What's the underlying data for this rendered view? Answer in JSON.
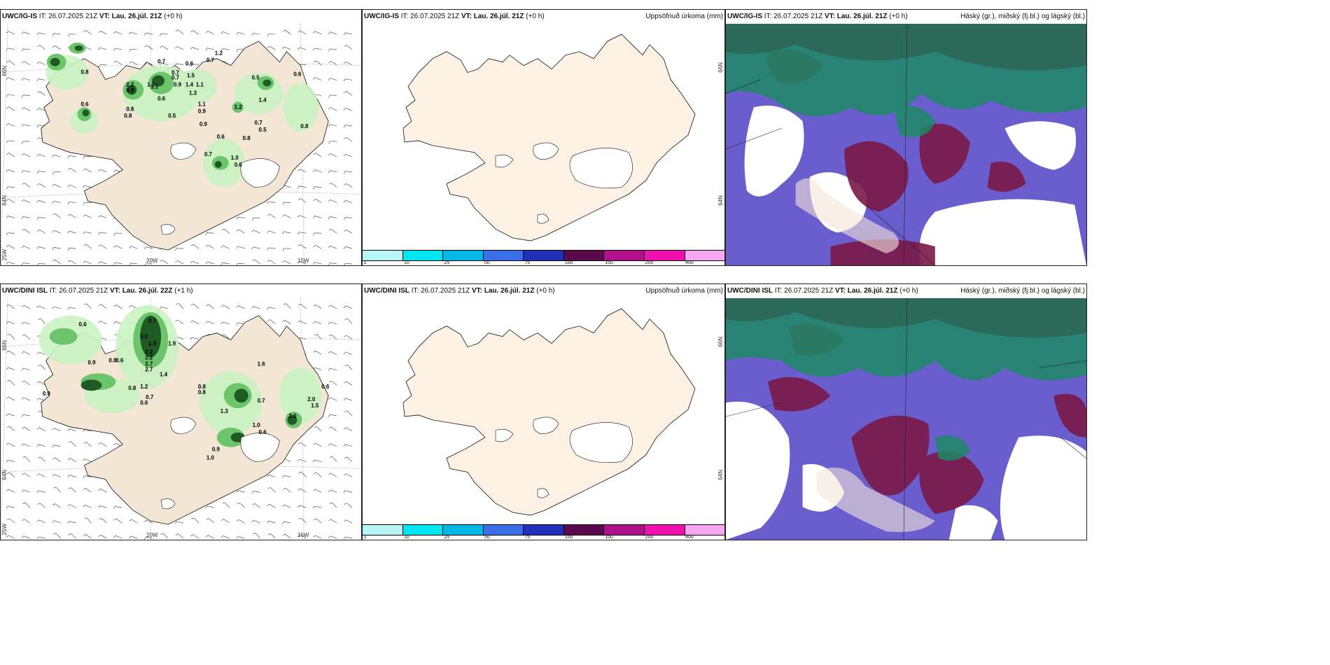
{
  "panels": [
    {
      "id": "p1",
      "model": "UWC/IG-IS",
      "it": "IT: 26.07.2025 21Z",
      "vt_label": "VT:",
      "vt": "Lau. 26.júl. 21Z",
      "lead": "(+0 h)",
      "right_title": ""
    },
    {
      "id": "p2",
      "model": "UWC/IG-IS",
      "it": "IT: 26.07.2025 21Z",
      "vt_label": "VT:",
      "vt": "Lau. 26.júl. 21Z",
      "lead": "(+0 h)",
      "right_title": "Uppsöfnuð úrkoma (mm)"
    },
    {
      "id": "p3",
      "model": "UWC/IG-IS",
      "it": "IT: 26.07.2025 21Z",
      "vt_label": "VT:",
      "vt": "Lau. 26.júl. 21Z",
      "lead": "(+0 h)",
      "right_title": "Háský (gr.), miðský (fj.bl.) og lágský (bl.)"
    },
    {
      "id": "p4",
      "model": "UWC/DINI ISL",
      "it": "IT: 26.07.2025 21Z",
      "vt_label": "VT:",
      "vt": "Lau. 26.júl. 22Z",
      "lead": "(+1 h)",
      "right_title": ""
    },
    {
      "id": "p5",
      "model": "UWC/DINI ISL",
      "it": "IT: 26.07.2025 21Z",
      "vt_label": "VT:",
      "vt": "Lau. 26.júl. 21Z",
      "lead": "(+0 h)",
      "right_title": "Uppsöfnuð úrkoma (mm)"
    },
    {
      "id": "p6",
      "model": "UWC/DINI ISL",
      "it": "IT: 26.07.2025 21Z",
      "vt_label": "VT:",
      "vt": "Lau. 26.júl. 21Z",
      "lead": "(+0 h)",
      "right_title": "Háský (gr.), miðský (fj.bl.) og lágský (bl.)"
    }
  ],
  "axis_labels": {
    "lon_20": "20W",
    "lon_15": "15W",
    "lat_66": "66N",
    "lat_64": "64N",
    "lon_25": "25W"
  },
  "colorbar": {
    "ticks": [
      "1",
      "10",
      "25",
      "50",
      "75",
      "100",
      "150",
      "200",
      "400"
    ],
    "colors": [
      "#b8f5f5",
      "#00e5f0",
      "#00b8e8",
      "#3a6ee8",
      "#2030b8",
      "#5a0a4a",
      "#b0108a",
      "#f010b0",
      "#f5a8f0"
    ]
  },
  "precip_labels_top": [
    "0.7",
    "1.2",
    "0.7",
    "0.8",
    "0.7",
    "0.6",
    "0.7",
    "1.5",
    "0.9",
    "1.4",
    "1.1",
    "0.9",
    "2.2",
    "1.1",
    "1.3",
    "0.6",
    "1.1",
    "0.8",
    "0.5",
    "0.9",
    "1.2",
    "1.4",
    "0.6",
    "0.8",
    "0.6",
    "0.9",
    "0.6",
    "0.7",
    "0.5",
    "1.0",
    "0.6",
    "0.8",
    "0.5",
    "0.8",
    "0.7",
    "1.2"
  ],
  "precip_labels_bottom": [
    "0.7",
    "0.6",
    "5.0",
    "1.9",
    "0.9",
    "0.6",
    "0.8",
    "1.9",
    "2.2",
    "2.2",
    "2.7",
    "2.7",
    "1.4",
    "1.2",
    "0.8",
    "0.7",
    "0.6",
    "0.9",
    "0.8",
    "0.8",
    "1.6",
    "1.3",
    "2.0",
    "0.7",
    "1.0",
    "0.6",
    "0.9",
    "1.0",
    "2.0",
    "1.5",
    "0.6"
  ],
  "colors": {
    "land": "#f3e6d5",
    "land_blank": "#fdf1e3",
    "coast": "#111111",
    "green_light": "#c9f3c2",
    "green_mid": "#6cc46b",
    "green_dark": "#1d5a24",
    "cloud_high": "#1c8a64",
    "cloud_mid": "#6a5ecf",
    "cloud_low": "#7a1a48"
  }
}
